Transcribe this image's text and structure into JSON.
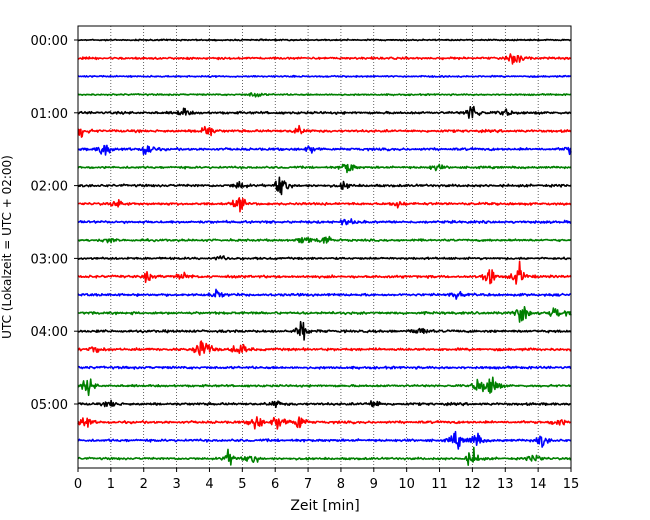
{
  "chart_data": {
    "type": "line",
    "xlabel": "Zeit  [min]",
    "ylabel": "UTC (Lokalzeit = UTC + 02:00)",
    "xlim": [
      0,
      15
    ],
    "x_ticks": [
      "0",
      "1",
      "2",
      "3",
      "4",
      "5",
      "6",
      "7",
      "8",
      "9",
      "10",
      "11",
      "12",
      "13",
      "14",
      "15"
    ],
    "grid": "vertical dotted",
    "trace_count": 24,
    "trace_interval_min": 15,
    "y_ticks": [
      {
        "label": "00:00",
        "trace": 0
      },
      {
        "label": "01:00",
        "trace": 4
      },
      {
        "label": "02:00",
        "trace": 8
      },
      {
        "label": "03:00",
        "trace": 12
      },
      {
        "label": "04:00",
        "trace": 16
      },
      {
        "label": "05:00",
        "trace": 20
      }
    ],
    "colors": [
      "#000000",
      "#ff0000",
      "#0000ff",
      "#008000"
    ],
    "noise": [
      0.9,
      1.4,
      1.0,
      1.0,
      1.6,
      1.6,
      1.6,
      1.4,
      1.6,
      1.6,
      1.6,
      1.4,
      1.4,
      1.6,
      1.6,
      1.6,
      1.6,
      1.6,
      1.6,
      1.4,
      1.6,
      1.6,
      1.6,
      1.4
    ],
    "events": [
      [],
      [
        {
          "x": 13.3,
          "a": 9
        }
      ],
      [],
      [
        {
          "x": 5.4,
          "a": 4
        }
      ],
      [
        {
          "x": 3.2,
          "a": 5
        },
        {
          "x": 12.0,
          "a": 12
        },
        {
          "x": 13.0,
          "a": 4
        }
      ],
      [
        {
          "x": 0.1,
          "a": 7
        },
        {
          "x": 3.9,
          "a": 9
        },
        {
          "x": 6.7,
          "a": 5
        }
      ],
      [
        {
          "x": 0.8,
          "a": 10
        },
        {
          "x": 2.1,
          "a": 9
        },
        {
          "x": 7.1,
          "a": 5
        },
        {
          "x": 15.0,
          "a": 6
        }
      ],
      [
        {
          "x": 8.2,
          "a": 8
        },
        {
          "x": 10.9,
          "a": 4
        }
      ],
      [
        {
          "x": 4.9,
          "a": 5
        },
        {
          "x": 6.2,
          "a": 13
        },
        {
          "x": 8.1,
          "a": 4
        }
      ],
      [
        {
          "x": 1.2,
          "a": 5
        },
        {
          "x": 4.9,
          "a": 8
        },
        {
          "x": 9.7,
          "a": 4
        }
      ],
      [
        {
          "x": 8.2,
          "a": 4
        }
      ],
      [
        {
          "x": 0.9,
          "a": 3
        },
        {
          "x": 6.9,
          "a": 5
        },
        {
          "x": 7.5,
          "a": 7
        }
      ],
      [
        {
          "x": 4.4,
          "a": 3
        }
      ],
      [
        {
          "x": 2.1,
          "a": 5
        },
        {
          "x": 3.2,
          "a": 5
        },
        {
          "x": 12.5,
          "a": 12
        },
        {
          "x": 13.4,
          "a": 14
        }
      ],
      [
        {
          "x": 4.2,
          "a": 5
        },
        {
          "x": 11.5,
          "a": 4
        }
      ],
      [
        {
          "x": 13.5,
          "a": 12
        },
        {
          "x": 14.5,
          "a": 8
        },
        {
          "x": 15.0,
          "a": 6
        }
      ],
      [
        {
          "x": 6.8,
          "a": 12
        },
        {
          "x": 10.4,
          "a": 6
        }
      ],
      [
        {
          "x": 0.5,
          "a": 5
        },
        {
          "x": 3.7,
          "a": 12
        },
        {
          "x": 4.9,
          "a": 9
        },
        {
          "x": 3.9,
          "a": 7
        }
      ],
      [],
      [
        {
          "x": 0.3,
          "a": 9
        },
        {
          "x": 12.2,
          "a": 10
        },
        {
          "x": 12.6,
          "a": 14
        }
      ],
      [
        {
          "x": 1.0,
          "a": 4
        },
        {
          "x": 6.0,
          "a": 4
        },
        {
          "x": 9.0,
          "a": 5
        }
      ],
      [
        {
          "x": 0.2,
          "a": 8
        },
        {
          "x": 5.4,
          "a": 10
        },
        {
          "x": 6.1,
          "a": 12
        },
        {
          "x": 6.7,
          "a": 11
        },
        {
          "x": 14.6,
          "a": 6
        }
      ],
      [
        {
          "x": 11.5,
          "a": 10
        },
        {
          "x": 12.1,
          "a": 9
        },
        {
          "x": 14.1,
          "a": 8
        }
      ],
      [
        {
          "x": 4.6,
          "a": 9
        },
        {
          "x": 5.3,
          "a": 6
        },
        {
          "x": 12.0,
          "a": 12
        },
        {
          "x": 13.9,
          "a": 7
        }
      ]
    ]
  }
}
